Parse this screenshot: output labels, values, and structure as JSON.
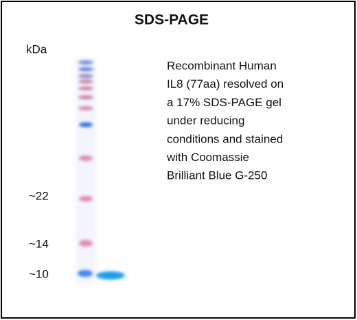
{
  "header": {
    "title": "SDS-PAGE"
  },
  "axis_label": "kDa",
  "markers": [
    "~22",
    "~14",
    "~10"
  ],
  "description": [
    "Recombinant Human",
    "IL8 (77aa) resolved on",
    "a 17% SDS-PAGE gel",
    "under reducing",
    "conditions and stained",
    "with Coomassie",
    "Brilliant Blue G-250"
  ]
}
